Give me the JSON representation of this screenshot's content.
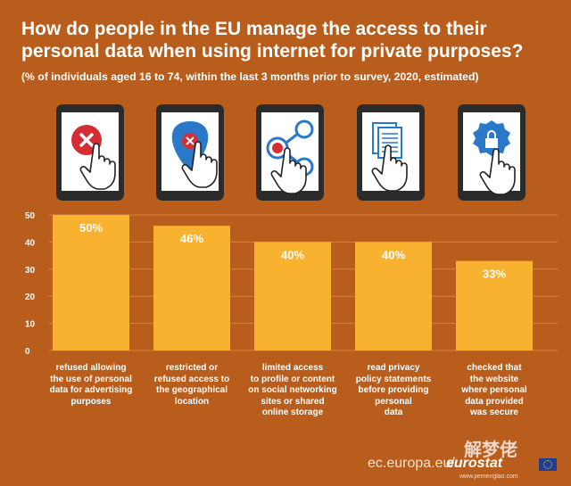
{
  "title": "How do people in the EU manage the access to their personal data when using internet for private purposes?",
  "subtitle": "(% of individuals aged 16 to 74, within the last 3 months prior to survey, 2020, estimated)",
  "footer": {
    "source": "ec.europa.eu/",
    "brand": "eurostat"
  },
  "watermark": {
    "text": "解梦佬",
    "url": "www.jiemenglao.com"
  },
  "colors": {
    "background": "#b85d1c",
    "bar": "#f9b22f",
    "grid": "#d9843a",
    "tablet": "#2b2b2b",
    "icon_red": "#d42e34",
    "icon_blue": "#2a79c9"
  },
  "icons": [
    "x-circle-hand-icon",
    "map-pin-x-hand-icon",
    "share-x-hand-icon",
    "document-hand-icon",
    "padlock-badge-hand-icon"
  ],
  "chart_data": {
    "type": "bar",
    "title": "How do people in the EU manage the access to their personal data when using internet for private purposes?",
    "subtitle": "(% of individuals aged 16 to 74, within the last 3 months prior to survey, 2020, estimated)",
    "categories": [
      "refused allowing\nthe use of personal\ndata for advertising\npurposes",
      "restricted or\nrefused access to\nthe geographical\nlocation",
      "limited access\nto profile or content\non social networking\nsites or shared\nonline storage",
      "read privacy\npolicy statements\nbefore providing\npersonal\ndata",
      "checked that\nthe website\nwhere personal\ndata provided\nwas secure"
    ],
    "values": [
      50,
      46,
      40,
      40,
      33
    ],
    "data_labels": [
      "50%",
      "46%",
      "40%",
      "40%",
      "33%"
    ],
    "ylim": [
      0,
      50
    ],
    "yticks": [
      0,
      10,
      20,
      30,
      40,
      50
    ],
    "grid": true,
    "xlabel": "",
    "ylabel": ""
  }
}
